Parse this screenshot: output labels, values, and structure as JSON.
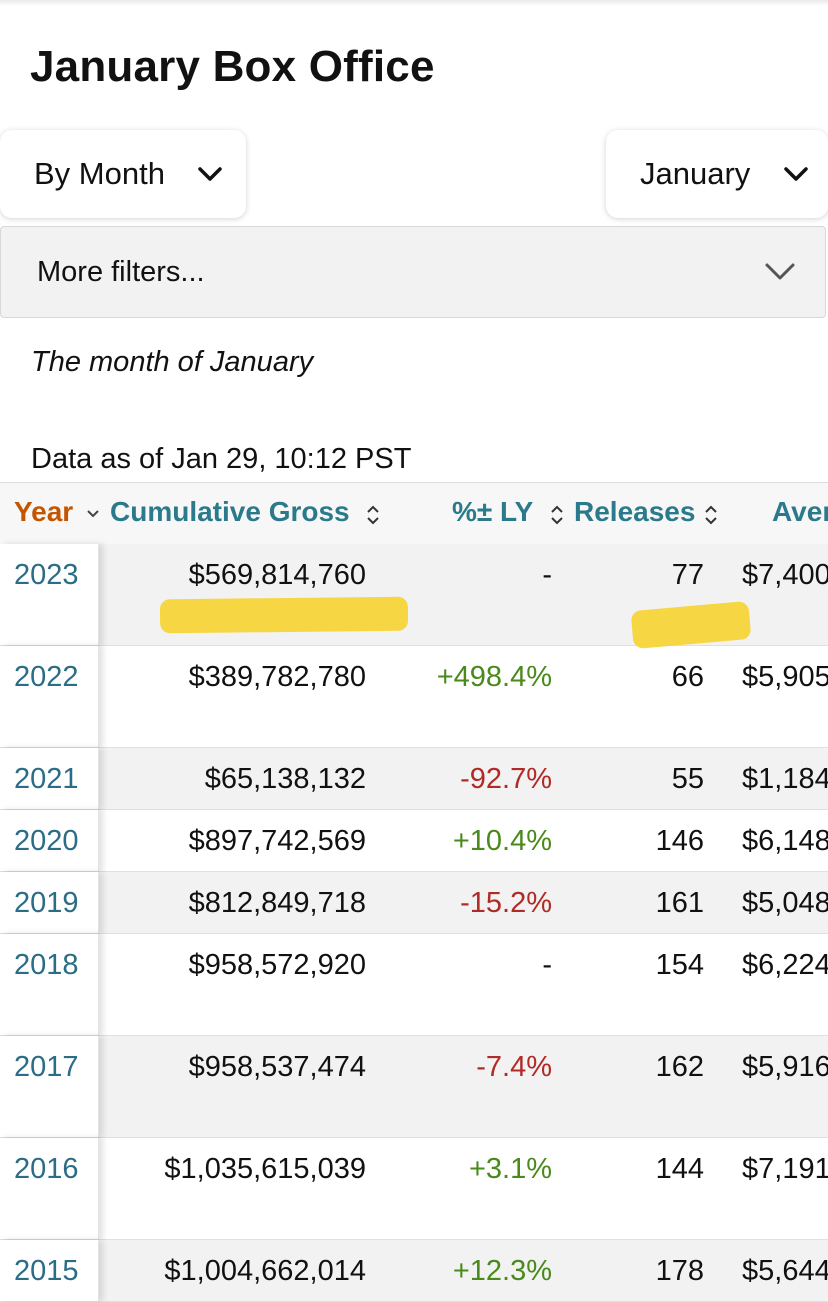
{
  "page": {
    "title": "January Box Office"
  },
  "filters": {
    "period_value": "By Month",
    "month_value": "January",
    "more_filters_label": "More filters..."
  },
  "summary": {
    "subtitle": "The month of January",
    "data_as_of": "Data as of Jan 29, 10:12 PST"
  },
  "table": {
    "columns": {
      "year": "Year",
      "gross": "Cumulative Gross",
      "ly": "%± LY",
      "releases": "Releases",
      "average": "Aver"
    },
    "rows": [
      {
        "year": "2023",
        "gross": "$569,814,760",
        "ly": "-",
        "ly_trend": "neutral",
        "releases": "77",
        "average": "$7,400"
      },
      {
        "year": "2022",
        "gross": "$389,782,780",
        "ly": "+498.4%",
        "ly_trend": "pos",
        "releases": "66",
        "average": "$5,905"
      },
      {
        "year": "2021",
        "gross": "$65,138,132",
        "ly": "-92.7%",
        "ly_trend": "neg",
        "releases": "55",
        "average": "$1,184"
      },
      {
        "year": "2020",
        "gross": "$897,742,569",
        "ly": "+10.4%",
        "ly_trend": "pos",
        "releases": "146",
        "average": "$6,148"
      },
      {
        "year": "2019",
        "gross": "$812,849,718",
        "ly": "-15.2%",
        "ly_trend": "neg",
        "releases": "161",
        "average": "$5,048"
      },
      {
        "year": "2018",
        "gross": "$958,572,920",
        "ly": "-",
        "ly_trend": "neutral",
        "releases": "154",
        "average": "$6,224"
      },
      {
        "year": "2017",
        "gross": "$958,537,474",
        "ly": "-7.4%",
        "ly_trend": "neg",
        "releases": "162",
        "average": "$5,916"
      },
      {
        "year": "2016",
        "gross": "$1,035,615,039",
        "ly": "+3.1%",
        "ly_trend": "pos",
        "releases": "144",
        "average": "$7,191"
      },
      {
        "year": "2015",
        "gross": "$1,004,662,014",
        "ly": "+12.3%",
        "ly_trend": "pos",
        "releases": "178",
        "average": "$5,644"
      }
    ]
  },
  "colors": {
    "link_teal": "#2b7a8c",
    "sorted_header": "#c45500",
    "positive": "#4a8a1c",
    "negative": "#b12b26",
    "highlighter": "#f7d434"
  }
}
